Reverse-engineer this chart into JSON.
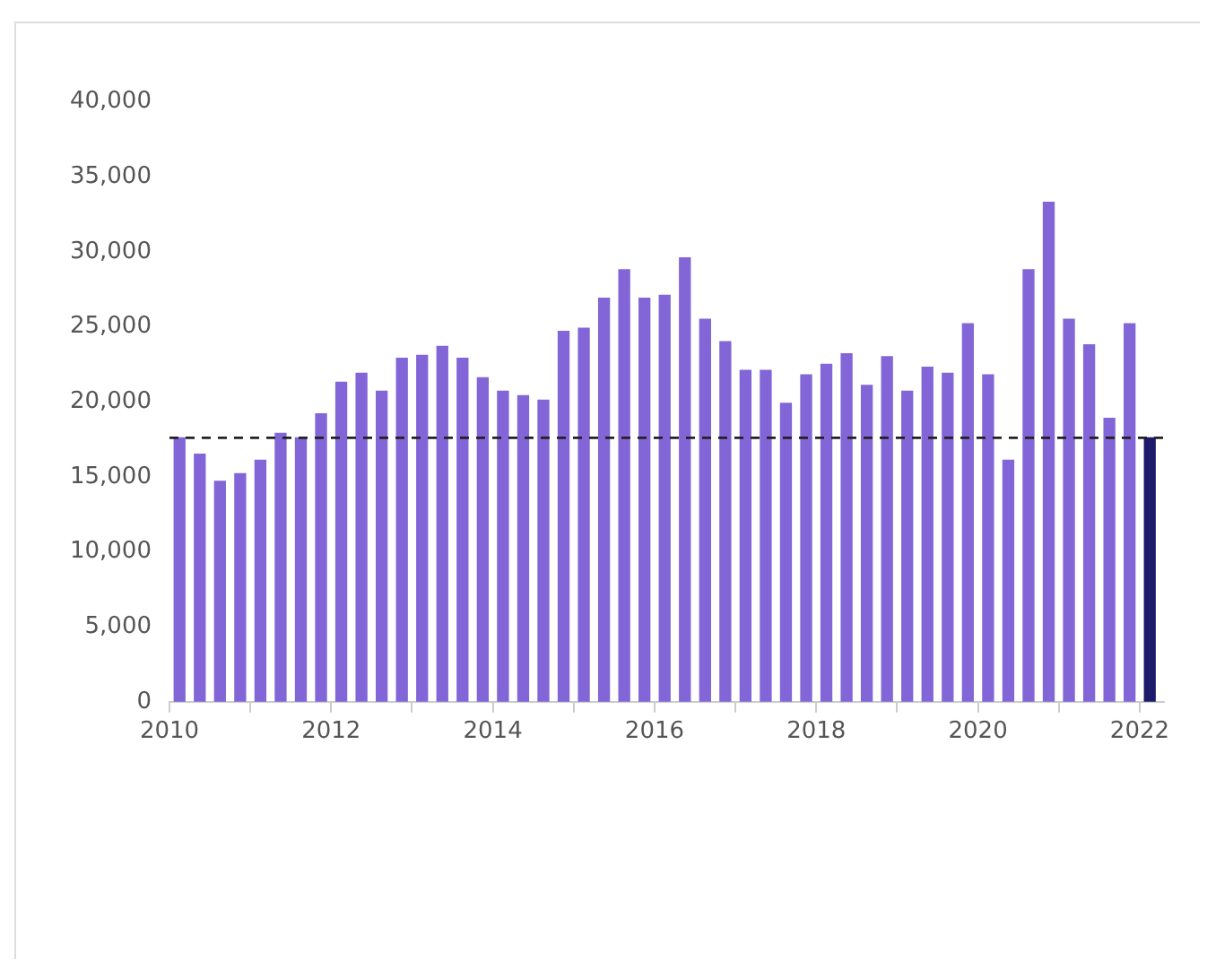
{
  "chart_data": {
    "type": "bar",
    "x": [
      2010.125,
      2010.375,
      2010.625,
      2010.875,
      2011.125,
      2011.375,
      2011.625,
      2011.875,
      2012.125,
      2012.375,
      2012.625,
      2012.875,
      2013.125,
      2013.375,
      2013.625,
      2013.875,
      2014.125,
      2014.375,
      2014.625,
      2014.875,
      2015.125,
      2015.375,
      2015.625,
      2015.875,
      2016.125,
      2016.375,
      2016.625,
      2016.875,
      2017.125,
      2017.375,
      2017.625,
      2017.875,
      2018.125,
      2018.375,
      2018.625,
      2018.875,
      2019.125,
      2019.375,
      2019.625,
      2019.875,
      2020.125,
      2020.375,
      2020.625,
      2020.875,
      2021.125,
      2021.375,
      2021.625,
      2021.875,
      2022.125
    ],
    "values": [
      17600,
      16500,
      14700,
      15200,
      16100,
      17900,
      17600,
      19200,
      21300,
      21900,
      20700,
      22900,
      23100,
      23700,
      22900,
      21600,
      20700,
      20400,
      20100,
      24700,
      24900,
      26900,
      28800,
      26900,
      27100,
      29600,
      25500,
      24000,
      22100,
      22100,
      19900,
      21800,
      22500,
      23200,
      21100,
      23000,
      20700,
      22300,
      21900,
      25200,
      21800,
      16100,
      28800,
      33300,
      25500,
      23800,
      18900,
      25200,
      17600
    ],
    "colors": [
      "#8266d8",
      "#8266d8",
      "#8266d8",
      "#8266d8",
      "#8266d8",
      "#8266d8",
      "#8266d8",
      "#8266d8",
      "#8266d8",
      "#8266d8",
      "#8266d8",
      "#8266d8",
      "#8266d8",
      "#8266d8",
      "#8266d8",
      "#8266d8",
      "#8266d8",
      "#8266d8",
      "#8266d8",
      "#8266d8",
      "#8266d8",
      "#8266d8",
      "#8266d8",
      "#8266d8",
      "#8266d8",
      "#8266d8",
      "#8266d8",
      "#8266d8",
      "#8266d8",
      "#8266d8",
      "#8266d8",
      "#8266d8",
      "#8266d8",
      "#8266d8",
      "#8266d8",
      "#8266d8",
      "#8266d8",
      "#8266d8",
      "#8266d8",
      "#8266d8",
      "#8266d8",
      "#8266d8",
      "#8266d8",
      "#8266d8",
      "#8266d8",
      "#8266d8",
      "#8266d8",
      "#8266d8",
      "#1e1a6a"
    ],
    "xlim": [
      2010,
      2022.3
    ],
    "xticks": [
      2010,
      {
        "value": 2011,
        "label": null
      },
      2012,
      {
        "value": 2013,
        "label": null
      },
      2014,
      {
        "value": 2015,
        "label": null
      },
      2016,
      {
        "value": 2017,
        "label": null
      },
      2018,
      {
        "value": 2019,
        "label": null
      },
      2020,
      {
        "value": 2021,
        "label": null
      },
      2022
    ],
    "ylim": [
      0,
      40000
    ],
    "yticks": [
      {
        "value": 0,
        "label": "0"
      },
      {
        "value": 5000,
        "label": "5,000"
      },
      {
        "value": 10000,
        "label": "10,000"
      },
      {
        "value": 15000,
        "label": "15,000"
      },
      {
        "value": 20000,
        "label": "20,000"
      },
      {
        "value": 25000,
        "label": "25,000"
      },
      {
        "value": 30000,
        "label": "30,000"
      },
      {
        "value": 35000,
        "label": "35,000"
      },
      {
        "value": 40000,
        "label": "40,000"
      }
    ],
    "ref_lines": [
      {
        "axis": "y",
        "value": 17600,
        "color": "#222222",
        "line_style": "dashed"
      }
    ],
    "grid": false,
    "legend": false
  }
}
